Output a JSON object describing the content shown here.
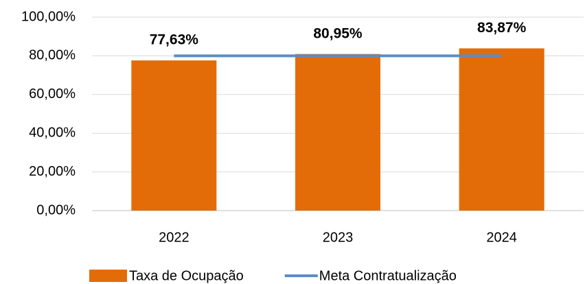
{
  "chart_data": {
    "type": "bar",
    "categories": [
      "2022",
      "2023",
      "2024"
    ],
    "series": [
      {
        "name": "Taxa de Ocupação",
        "type": "bar",
        "color": "#e36c09",
        "values": [
          77.63,
          80.95,
          83.87
        ],
        "value_labels": [
          "77,63%",
          "80,95%",
          "83,87%"
        ]
      },
      {
        "name": "Meta Contratualização",
        "type": "line",
        "color": "#5b8cc8",
        "values": [
          80,
          80,
          80
        ]
      }
    ],
    "ylim": [
      0,
      100
    ],
    "yticks": [
      {
        "value": 0,
        "label": "0,00%"
      },
      {
        "value": 20,
        "label": "20,00%"
      },
      {
        "value": 40,
        "label": "40,00%"
      },
      {
        "value": 60,
        "label": "60,00%"
      },
      {
        "value": 80,
        "label": "80,00%"
      },
      {
        "value": 100,
        "label": "100,00%"
      }
    ],
    "grid": true,
    "legend": "bottom"
  }
}
